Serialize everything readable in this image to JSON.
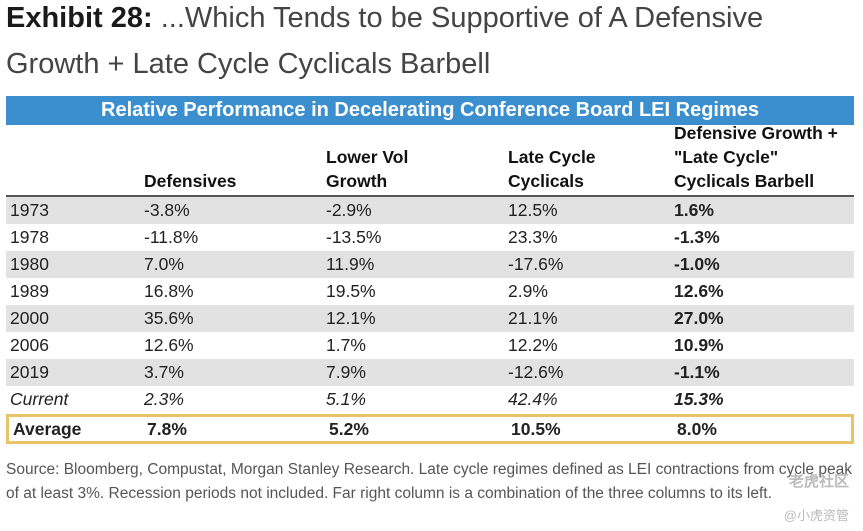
{
  "title": {
    "exhibit": "Exhibit 28:",
    "line1_rest": "...Which Tends to be Supportive of A Defensive",
    "line2": "Growth + Late Cycle Cyclicals Barbell"
  },
  "table": {
    "banner": "Relative Performance in Decelerating Conference Board LEI Regimes",
    "headers": {
      "col1": "Defensives",
      "col2_line1": "Lower Vol",
      "col2_line2": "Growth",
      "col3_line1": "Late Cycle",
      "col3_line2": "Cyclicals",
      "col4_line1": "Defensive Growth +",
      "col4_line2": "\"Late Cycle\"",
      "col4_line3": "Cyclicals Barbell"
    },
    "rows": [
      {
        "label": "1973",
        "defensives": "-3.8%",
        "lower_vol_growth": "-2.9%",
        "late_cycle_cyclicals": "12.5%",
        "barbell": "1.6%"
      },
      {
        "label": "1978",
        "defensives": "-11.8%",
        "lower_vol_growth": "-13.5%",
        "late_cycle_cyclicals": "23.3%",
        "barbell": "-1.3%"
      },
      {
        "label": "1980",
        "defensives": "7.0%",
        "lower_vol_growth": "11.9%",
        "late_cycle_cyclicals": "-17.6%",
        "barbell": "-1.0%"
      },
      {
        "label": "1989",
        "defensives": "16.8%",
        "lower_vol_growth": "19.5%",
        "late_cycle_cyclicals": "2.9%",
        "barbell": "12.6%"
      },
      {
        "label": "2000",
        "defensives": "35.6%",
        "lower_vol_growth": "12.1%",
        "late_cycle_cyclicals": "21.1%",
        "barbell": "27.0%"
      },
      {
        "label": "2006",
        "defensives": "12.6%",
        "lower_vol_growth": "1.7%",
        "late_cycle_cyclicals": "12.2%",
        "barbell": "10.9%"
      },
      {
        "label": "2019",
        "defensives": "3.7%",
        "lower_vol_growth": "7.9%",
        "late_cycle_cyclicals": "-12.6%",
        "barbell": "-1.1%"
      },
      {
        "label": "Current",
        "defensives": "2.3%",
        "lower_vol_growth": "5.1%",
        "late_cycle_cyclicals": "42.4%",
        "barbell": "15.3%"
      },
      {
        "label": "Average",
        "defensives": "7.8%",
        "lower_vol_growth": "5.2%",
        "late_cycle_cyclicals": "10.5%",
        "barbell": "8.0%"
      }
    ]
  },
  "source_note": "Source: Bloomberg, Compustat, Morgan Stanley Research. Late cycle regimes defined as LEI contractions from cycle peak of at least 3%. Recession periods not included. Far right column is a combination of the three columns to its left.",
  "watermark": {
    "line1": "老虎社区",
    "line2": "@小虎资管"
  },
  "colors": {
    "banner": "#3b8fcf",
    "row_shade": "#e2e2e2",
    "average_border": "#e8c468"
  }
}
